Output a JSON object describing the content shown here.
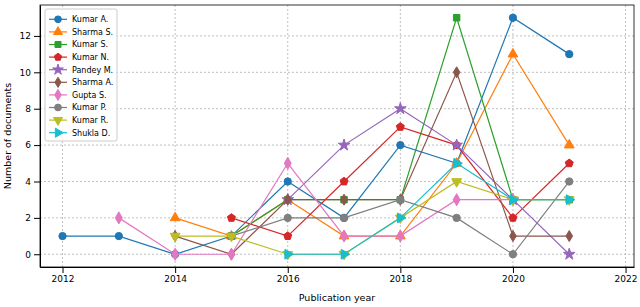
{
  "chart_data": {
    "type": "line",
    "x_label": "Publication year",
    "y_label": "Number of documents",
    "x": [
      2012,
      2013,
      2014,
      2015,
      2016,
      2017,
      2018,
      2019,
      2020,
      2021
    ],
    "xlim": [
      2011.6,
      2022.15
    ],
    "xticks": [
      2012,
      2014,
      2016,
      2018,
      2020,
      2022
    ],
    "ylim": [
      -0.7,
      13.7
    ],
    "yticks": [
      0,
      2,
      4,
      6,
      8,
      10,
      12
    ],
    "grid": true,
    "legend": "upper left",
    "series": [
      {
        "name": "Kumar A.",
        "color": "#1f77b4",
        "marker": "circle",
        "values": [
          1,
          1,
          0,
          1,
          4,
          2,
          6,
          5,
          13,
          11
        ]
      },
      {
        "name": "Sharma S.",
        "color": "#ff7f0e",
        "marker": "triangle_up",
        "values": [
          null,
          null,
          2,
          1,
          3,
          1,
          1,
          5,
          11,
          6
        ]
      },
      {
        "name": "Kumar S.",
        "color": "#2ca02c",
        "marker": "square",
        "values": [
          null,
          null,
          null,
          1,
          3,
          3,
          3,
          13,
          3,
          3
        ]
      },
      {
        "name": "Kumar N.",
        "color": "#d62728",
        "marker": "pentagon",
        "values": [
          null,
          null,
          null,
          2,
          1,
          4,
          7,
          6,
          2,
          5
        ]
      },
      {
        "name": "Pandey M.",
        "color": "#9467bd",
        "marker": "star",
        "values": [
          null,
          null,
          null,
          null,
          3,
          6,
          8,
          6,
          3,
          0
        ]
      },
      {
        "name": "Sharma A.",
        "color": "#8c564b",
        "marker": "thin_diamond",
        "values": [
          null,
          null,
          1,
          0,
          3,
          3,
          3,
          10,
          1,
          1
        ]
      },
      {
        "name": "Gupta S.",
        "color": "#e377c2",
        "marker": "diamond",
        "values": [
          null,
          2,
          0,
          0,
          5,
          1,
          1,
          3,
          3,
          null
        ]
      },
      {
        "name": "Kumar P.",
        "color": "#7f7f7f",
        "marker": "circle",
        "values": [
          null,
          null,
          null,
          1,
          2,
          2,
          3,
          2,
          0,
          4
        ]
      },
      {
        "name": "Kumar R.",
        "color": "#bcbd22",
        "marker": "triangle_down",
        "values": [
          null,
          null,
          1,
          1,
          0,
          0,
          2,
          4,
          3,
          3
        ]
      },
      {
        "name": "Shukla D.",
        "color": "#17becf",
        "marker": "triangle_right",
        "values": [
          null,
          null,
          null,
          null,
          0,
          0,
          2,
          5,
          3,
          3
        ]
      }
    ]
  }
}
